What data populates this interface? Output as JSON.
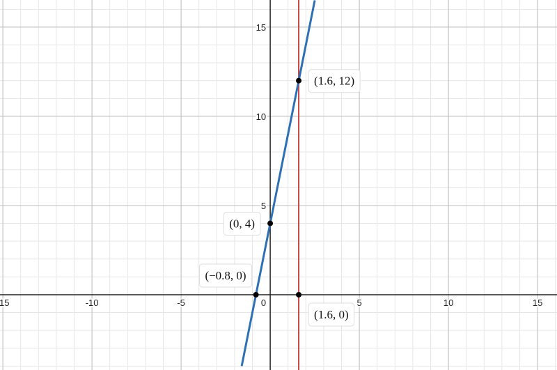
{
  "chart_data": {
    "type": "line",
    "xlim": [
      -15.16,
      16.09
    ],
    "ylim": [
      -4.22,
      16.52
    ],
    "xticks": [
      -15,
      -10,
      -5,
      5,
      10,
      15
    ],
    "yticks": [
      5,
      10,
      15
    ],
    "origin_label": "0",
    "grid": true,
    "series": [
      {
        "color": "#2d70b3",
        "x": [
          -1.6,
          2.5
        ],
        "values": [
          -4,
          16.5
        ]
      },
      {
        "color": "#c74440",
        "x": [
          1.6,
          1.6
        ],
        "values": [
          -4.22,
          16.52
        ]
      }
    ],
    "points": [
      {
        "x": 1.6,
        "y": 12,
        "label": "(1.6, 12)"
      },
      {
        "x": 0,
        "y": 4,
        "label": "(0, 4)"
      },
      {
        "x": -0.8,
        "y": 0,
        "label": "(−0.8, 0)"
      },
      {
        "x": 1.6,
        "y": 0,
        "label": "(1.6, 0)"
      }
    ]
  }
}
